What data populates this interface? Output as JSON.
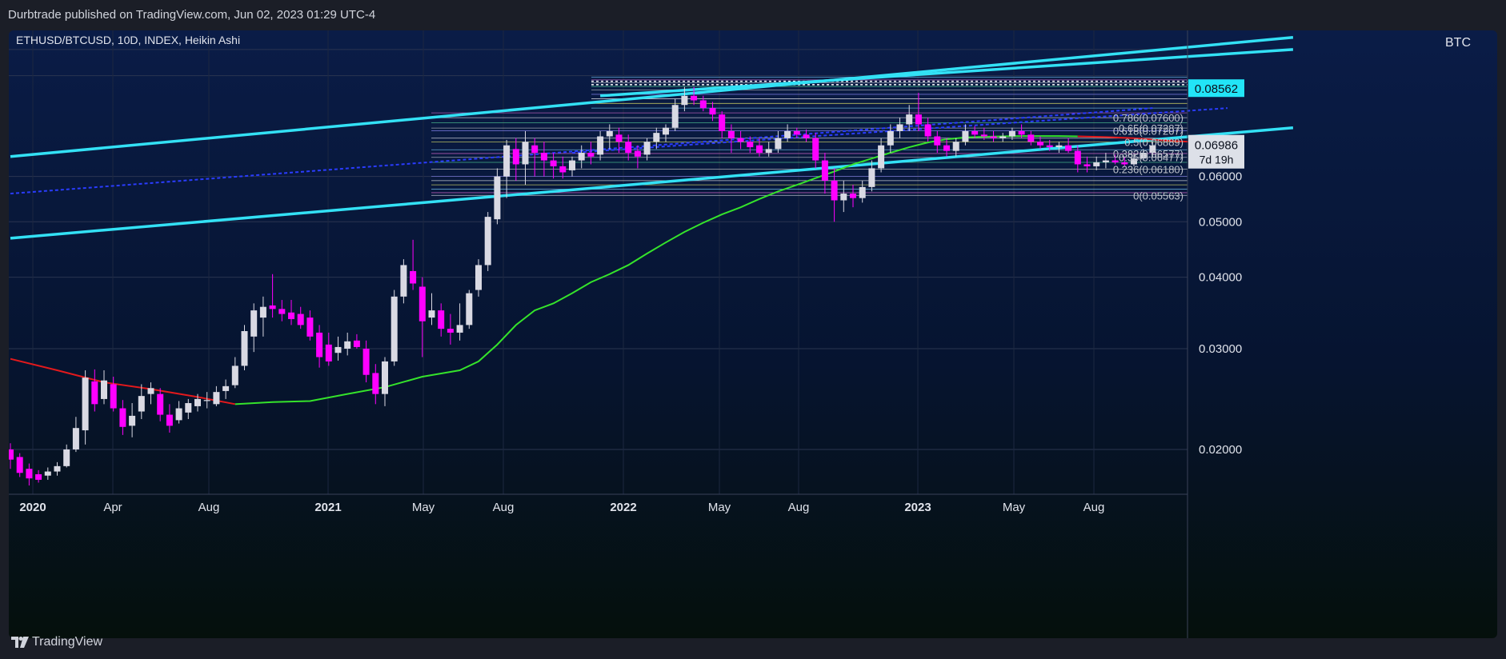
{
  "header": {
    "published_text": "Durbtrade published on TradingView.com, Jun 02, 2023 01:29 UTC-4"
  },
  "footer": {
    "brand": "TradingView"
  },
  "colors": {
    "up_candle": "#d9d9e3",
    "down_candle": "#ff00ff",
    "channel": "#33e1f5",
    "ma_green": "#35e32b",
    "ma_red": "#e3191c",
    "dotted_blue": "#2a3cff",
    "price_tag_cyan": "#22e5f8"
  },
  "chart_data": {
    "type": "candlestick",
    "title": "ETHUSD/BTCUSD, 10D, INDEX, Heikin Ashi",
    "currency": "BTC",
    "y_scale": "log",
    "ylim": [
      0.0167,
      0.108
    ],
    "y_ticks": [
      "0.02000",
      "0.03000",
      "0.04000",
      "0.05000",
      "0.06000"
    ],
    "x_labels": [
      "2020",
      "Apr",
      "Aug",
      "2021",
      "May",
      "Aug",
      "2022",
      "May",
      "Aug",
      "2023",
      "May",
      "Aug"
    ],
    "x_range": [
      "2020-01",
      "2023-10"
    ],
    "price_tags": {
      "current": "0.06986",
      "countdown": "7d 19h",
      "channel": "0.08562"
    },
    "fib_labels": [
      "0.786(0.07600)",
      "0.65(0.07287)",
      "0.618(0.07207)",
      "0.5(0.06889)",
      "0.382(0.06577)",
      "0.35(0.06477)",
      "0.236(0.06180)",
      "0(0.05563)"
    ],
    "candles": [
      {
        "o": 0.02,
        "h": 0.0205,
        "l": 0.0185,
        "c": 0.0192
      },
      {
        "o": 0.0194,
        "h": 0.0197,
        "l": 0.0179,
        "c": 0.0182
      },
      {
        "o": 0.0185,
        "h": 0.0189,
        "l": 0.0173,
        "c": 0.0178
      },
      {
        "o": 0.0181,
        "h": 0.0184,
        "l": 0.0175,
        "c": 0.0177
      },
      {
        "o": 0.018,
        "h": 0.0186,
        "l": 0.0177,
        "c": 0.0183
      },
      {
        "o": 0.0183,
        "h": 0.019,
        "l": 0.018,
        "c": 0.0187
      },
      {
        "o": 0.0187,
        "h": 0.0204,
        "l": 0.0186,
        "c": 0.02
      },
      {
        "o": 0.02,
        "h": 0.0228,
        "l": 0.0198,
        "c": 0.0218
      },
      {
        "o": 0.0216,
        "h": 0.0275,
        "l": 0.0204,
        "c": 0.0267
      },
      {
        "o": 0.0263,
        "h": 0.0276,
        "l": 0.0233,
        "c": 0.024
      },
      {
        "o": 0.0245,
        "h": 0.0275,
        "l": 0.024,
        "c": 0.0264
      },
      {
        "o": 0.026,
        "h": 0.0268,
        "l": 0.0233,
        "c": 0.0236
      },
      {
        "o": 0.0236,
        "h": 0.0244,
        "l": 0.0212,
        "c": 0.0219
      },
      {
        "o": 0.022,
        "h": 0.0241,
        "l": 0.021,
        "c": 0.0229
      },
      {
        "o": 0.0233,
        "h": 0.026,
        "l": 0.0226,
        "c": 0.0248
      },
      {
        "o": 0.025,
        "h": 0.0262,
        "l": 0.024,
        "c": 0.0256
      },
      {
        "o": 0.025,
        "h": 0.0256,
        "l": 0.0224,
        "c": 0.023
      },
      {
        "o": 0.023,
        "h": 0.024,
        "l": 0.0214,
        "c": 0.022
      },
      {
        "o": 0.0225,
        "h": 0.0243,
        "l": 0.0222,
        "c": 0.0236
      },
      {
        "o": 0.0232,
        "h": 0.0245,
        "l": 0.0226,
        "c": 0.0241
      },
      {
        "o": 0.0238,
        "h": 0.025,
        "l": 0.0233,
        "c": 0.0245
      },
      {
        "o": 0.0243,
        "h": 0.0252,
        "l": 0.0236,
        "c": 0.0244
      },
      {
        "o": 0.024,
        "h": 0.0258,
        "l": 0.0238,
        "c": 0.0252
      },
      {
        "o": 0.0253,
        "h": 0.0265,
        "l": 0.0245,
        "c": 0.0258
      },
      {
        "o": 0.0259,
        "h": 0.029,
        "l": 0.0256,
        "c": 0.028
      },
      {
        "o": 0.028,
        "h": 0.033,
        "l": 0.0275,
        "c": 0.0322
      },
      {
        "o": 0.0315,
        "h": 0.036,
        "l": 0.0296,
        "c": 0.035
      },
      {
        "o": 0.034,
        "h": 0.037,
        "l": 0.0315,
        "c": 0.0355
      },
      {
        "o": 0.0357,
        "h": 0.0405,
        "l": 0.034,
        "c": 0.0352
      },
      {
        "o": 0.0352,
        "h": 0.0365,
        "l": 0.0335,
        "c": 0.0345
      },
      {
        "o": 0.0347,
        "h": 0.0365,
        "l": 0.033,
        "c": 0.0338
      },
      {
        "o": 0.0345,
        "h": 0.0355,
        "l": 0.0325,
        "c": 0.033
      },
      {
        "o": 0.034,
        "h": 0.035,
        "l": 0.031,
        "c": 0.0315
      },
      {
        "o": 0.032,
        "h": 0.033,
        "l": 0.0278,
        "c": 0.029
      },
      {
        "o": 0.0305,
        "h": 0.032,
        "l": 0.028,
        "c": 0.0285
      },
      {
        "o": 0.0295,
        "h": 0.0315,
        "l": 0.0286,
        "c": 0.0302
      },
      {
        "o": 0.03,
        "h": 0.032,
        "l": 0.0292,
        "c": 0.0309
      },
      {
        "o": 0.031,
        "h": 0.0318,
        "l": 0.03,
        "c": 0.0302
      },
      {
        "o": 0.03,
        "h": 0.031,
        "l": 0.0262,
        "c": 0.027
      },
      {
        "o": 0.0272,
        "h": 0.0282,
        "l": 0.024,
        "c": 0.025
      },
      {
        "o": 0.025,
        "h": 0.029,
        "l": 0.0238,
        "c": 0.0285
      },
      {
        "o": 0.0285,
        "h": 0.038,
        "l": 0.028,
        "c": 0.037
      },
      {
        "o": 0.037,
        "h": 0.043,
        "l": 0.036,
        "c": 0.042
      },
      {
        "o": 0.041,
        "h": 0.0465,
        "l": 0.038,
        "c": 0.039
      },
      {
        "o": 0.0385,
        "h": 0.04,
        "l": 0.029,
        "c": 0.0335
      },
      {
        "o": 0.034,
        "h": 0.0375,
        "l": 0.033,
        "c": 0.035
      },
      {
        "o": 0.035,
        "h": 0.036,
        "l": 0.0315,
        "c": 0.0325
      },
      {
        "o": 0.0325,
        "h": 0.0345,
        "l": 0.0305,
        "c": 0.032
      },
      {
        "o": 0.032,
        "h": 0.036,
        "l": 0.031,
        "c": 0.033
      },
      {
        "o": 0.033,
        "h": 0.038,
        "l": 0.0325,
        "c": 0.0375
      },
      {
        "o": 0.038,
        "h": 0.043,
        "l": 0.037,
        "c": 0.042
      },
      {
        "o": 0.042,
        "h": 0.052,
        "l": 0.041,
        "c": 0.051
      },
      {
        "o": 0.0505,
        "h": 0.062,
        "l": 0.0495,
        "c": 0.06
      },
      {
        "o": 0.06,
        "h": 0.0695,
        "l": 0.055,
        "c": 0.068
      },
      {
        "o": 0.067,
        "h": 0.07,
        "l": 0.059,
        "c": 0.063
      },
      {
        "o": 0.063,
        "h": 0.072,
        "l": 0.058,
        "c": 0.069
      },
      {
        "o": 0.068,
        "h": 0.07,
        "l": 0.06,
        "c": 0.066
      },
      {
        "o": 0.066,
        "h": 0.069,
        "l": 0.06,
        "c": 0.064
      },
      {
        "o": 0.064,
        "h": 0.066,
        "l": 0.0595,
        "c": 0.0625
      },
      {
        "o": 0.0625,
        "h": 0.065,
        "l": 0.0595,
        "c": 0.061
      },
      {
        "o": 0.0615,
        "h": 0.065,
        "l": 0.06,
        "c": 0.064
      },
      {
        "o": 0.064,
        "h": 0.068,
        "l": 0.062,
        "c": 0.066
      },
      {
        "o": 0.066,
        "h": 0.069,
        "l": 0.063,
        "c": 0.065
      },
      {
        "o": 0.0655,
        "h": 0.072,
        "l": 0.064,
        "c": 0.0705
      },
      {
        "o": 0.0705,
        "h": 0.074,
        "l": 0.067,
        "c": 0.072
      },
      {
        "o": 0.071,
        "h": 0.073,
        "l": 0.066,
        "c": 0.069
      },
      {
        "o": 0.069,
        "h": 0.071,
        "l": 0.064,
        "c": 0.066
      },
      {
        "o": 0.0665,
        "h": 0.068,
        "l": 0.062,
        "c": 0.065
      },
      {
        "o": 0.0655,
        "h": 0.07,
        "l": 0.064,
        "c": 0.069
      },
      {
        "o": 0.069,
        "h": 0.073,
        "l": 0.067,
        "c": 0.0715
      },
      {
        "o": 0.071,
        "h": 0.074,
        "l": 0.069,
        "c": 0.073
      },
      {
        "o": 0.073,
        "h": 0.082,
        "l": 0.072,
        "c": 0.08
      },
      {
        "o": 0.08,
        "h": 0.086,
        "l": 0.078,
        "c": 0.083
      },
      {
        "o": 0.083,
        "h": 0.086,
        "l": 0.08,
        "c": 0.0815
      },
      {
        "o": 0.0815,
        "h": 0.083,
        "l": 0.078,
        "c": 0.079
      },
      {
        "o": 0.079,
        "h": 0.081,
        "l": 0.075,
        "c": 0.077
      },
      {
        "o": 0.077,
        "h": 0.078,
        "l": 0.07,
        "c": 0.072
      },
      {
        "o": 0.072,
        "h": 0.074,
        "l": 0.066,
        "c": 0.07
      },
      {
        "o": 0.07,
        "h": 0.072,
        "l": 0.067,
        "c": 0.069
      },
      {
        "o": 0.069,
        "h": 0.0705,
        "l": 0.066,
        "c": 0.0675
      },
      {
        "o": 0.068,
        "h": 0.07,
        "l": 0.065,
        "c": 0.066
      },
      {
        "o": 0.066,
        "h": 0.069,
        "l": 0.065,
        "c": 0.067
      },
      {
        "o": 0.067,
        "h": 0.072,
        "l": 0.066,
        "c": 0.07
      },
      {
        "o": 0.07,
        "h": 0.074,
        "l": 0.069,
        "c": 0.072
      },
      {
        "o": 0.072,
        "h": 0.073,
        "l": 0.07,
        "c": 0.071
      },
      {
        "o": 0.071,
        "h": 0.0725,
        "l": 0.069,
        "c": 0.07
      },
      {
        "o": 0.07,
        "h": 0.0715,
        "l": 0.062,
        "c": 0.064
      },
      {
        "o": 0.064,
        "h": 0.066,
        "l": 0.056,
        "c": 0.059
      },
      {
        "o": 0.059,
        "h": 0.062,
        "l": 0.05,
        "c": 0.0545
      },
      {
        "o": 0.0545,
        "h": 0.059,
        "l": 0.052,
        "c": 0.056
      },
      {
        "o": 0.056,
        "h": 0.058,
        "l": 0.053,
        "c": 0.055
      },
      {
        "o": 0.055,
        "h": 0.059,
        "l": 0.054,
        "c": 0.0575
      },
      {
        "o": 0.0575,
        "h": 0.064,
        "l": 0.0565,
        "c": 0.062
      },
      {
        "o": 0.062,
        "h": 0.07,
        "l": 0.061,
        "c": 0.068
      },
      {
        "o": 0.068,
        "h": 0.074,
        "l": 0.066,
        "c": 0.072
      },
      {
        "o": 0.072,
        "h": 0.076,
        "l": 0.07,
        "c": 0.074
      },
      {
        "o": 0.074,
        "h": 0.08,
        "l": 0.072,
        "c": 0.077
      },
      {
        "o": 0.077,
        "h": 0.084,
        "l": 0.072,
        "c": 0.074
      },
      {
        "o": 0.074,
        "h": 0.076,
        "l": 0.069,
        "c": 0.0705
      },
      {
        "o": 0.0705,
        "h": 0.072,
        "l": 0.066,
        "c": 0.068
      },
      {
        "o": 0.068,
        "h": 0.07,
        "l": 0.065,
        "c": 0.0665
      },
      {
        "o": 0.0665,
        "h": 0.07,
        "l": 0.065,
        "c": 0.069
      },
      {
        "o": 0.069,
        "h": 0.074,
        "l": 0.068,
        "c": 0.072
      },
      {
        "o": 0.072,
        "h": 0.0735,
        "l": 0.07,
        "c": 0.071
      },
      {
        "o": 0.071,
        "h": 0.073,
        "l": 0.0695,
        "c": 0.0705
      },
      {
        "o": 0.0705,
        "h": 0.072,
        "l": 0.069,
        "c": 0.07
      },
      {
        "o": 0.07,
        "h": 0.0715,
        "l": 0.069,
        "c": 0.0705
      },
      {
        "o": 0.0705,
        "h": 0.073,
        "l": 0.0695,
        "c": 0.072
      },
      {
        "o": 0.072,
        "h": 0.074,
        "l": 0.07,
        "c": 0.071
      },
      {
        "o": 0.071,
        "h": 0.072,
        "l": 0.068,
        "c": 0.069
      },
      {
        "o": 0.069,
        "h": 0.0705,
        "l": 0.067,
        "c": 0.068
      },
      {
        "o": 0.068,
        "h": 0.0695,
        "l": 0.0665,
        "c": 0.0675
      },
      {
        "o": 0.0675,
        "h": 0.069,
        "l": 0.066,
        "c": 0.068
      },
      {
        "o": 0.068,
        "h": 0.07,
        "l": 0.066,
        "c": 0.0665
      },
      {
        "o": 0.0665,
        "h": 0.068,
        "l": 0.061,
        "c": 0.063
      },
      {
        "o": 0.063,
        "h": 0.065,
        "l": 0.061,
        "c": 0.0625
      },
      {
        "o": 0.0625,
        "h": 0.065,
        "l": 0.0615,
        "c": 0.0635
      },
      {
        "o": 0.0635,
        "h": 0.066,
        "l": 0.062,
        "c": 0.064
      },
      {
        "o": 0.064,
        "h": 0.0655,
        "l": 0.063,
        "c": 0.0635
      },
      {
        "o": 0.0635,
        "h": 0.065,
        "l": 0.0625,
        "c": 0.063
      },
      {
        "o": 0.063,
        "h": 0.066,
        "l": 0.0625,
        "c": 0.0645
      },
      {
        "o": 0.0645,
        "h": 0.067,
        "l": 0.064,
        "c": 0.066
      },
      {
        "o": 0.066,
        "h": 0.069,
        "l": 0.065,
        "c": 0.068
      }
    ],
    "ma_red": [
      [
        0,
        0.0288
      ],
      [
        5,
        0.0275
      ],
      [
        10,
        0.0262
      ],
      [
        15,
        0.0255
      ],
      [
        20,
        0.0247
      ],
      [
        24,
        0.024
      ]
    ],
    "ma_green": [
      [
        24,
        0.024
      ],
      [
        28,
        0.0242
      ],
      [
        32,
        0.0243
      ],
      [
        36,
        0.025
      ],
      [
        40,
        0.0257
      ],
      [
        44,
        0.0268
      ],
      [
        48,
        0.0275
      ],
      [
        50,
        0.0285
      ],
      [
        52,
        0.0305
      ],
      [
        54,
        0.033
      ],
      [
        56,
        0.035
      ],
      [
        58,
        0.036
      ],
      [
        60,
        0.0375
      ],
      [
        62,
        0.0392
      ],
      [
        64,
        0.0405
      ],
      [
        66,
        0.042
      ],
      [
        68,
        0.044
      ],
      [
        70,
        0.046
      ],
      [
        72,
        0.048
      ],
      [
        74,
        0.0498
      ],
      [
        76,
        0.0515
      ],
      [
        78,
        0.053
      ],
      [
        80,
        0.0548
      ],
      [
        82,
        0.0565
      ],
      [
        84,
        0.058
      ],
      [
        86,
        0.0596
      ],
      [
        88,
        0.0612
      ],
      [
        90,
        0.063
      ],
      [
        92,
        0.0645
      ],
      [
        94,
        0.066
      ],
      [
        96,
        0.0675
      ],
      [
        98,
        0.0688
      ],
      [
        100,
        0.0697
      ],
      [
        102,
        0.0702
      ],
      [
        104,
        0.0704
      ],
      [
        106,
        0.0705
      ],
      [
        108,
        0.0706
      ],
      [
        112,
        0.0706
      ],
      [
        114,
        0.0705
      ]
    ],
    "ma_red_late": [
      [
        114,
        0.0705
      ],
      [
        117,
        0.0703
      ],
      [
        120,
        0.07
      ],
      [
        122,
        0.0696
      ],
      [
        124,
        0.0692
      ],
      [
        126,
        0.069
      ]
    ],
    "channel_upper": [
      [
        0,
        0.065
      ],
      [
        137,
        0.105
      ]
    ],
    "channel_lower": [
      [
        0,
        0.0468
      ],
      [
        137,
        0.073
      ]
    ],
    "channel_mid": [
      [
        63,
        0.083
      ],
      [
        137,
        0.1
      ]
    ],
    "dotted_line": [
      [
        0,
        0.056
      ],
      [
        122,
        0.079
      ]
    ],
    "dotted_line2": [
      [
        60,
        0.066
      ],
      [
        130,
        0.079
      ]
    ]
  }
}
